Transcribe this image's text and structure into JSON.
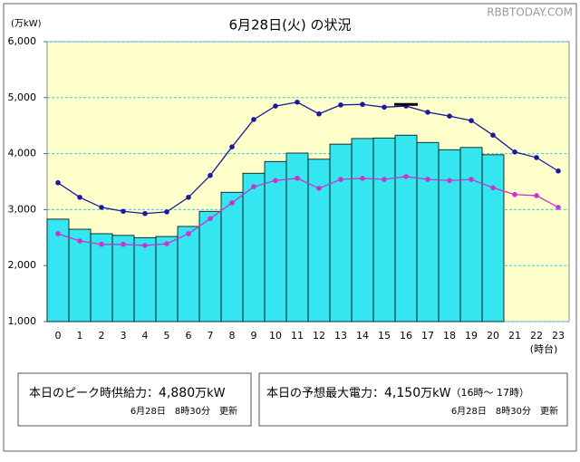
{
  "chart_data": {
    "type": "bar_line",
    "title": "6月28日(火) の状況",
    "watermark": "RBBTODAY.COM",
    "y_label": "(万kW)",
    "x_label": "(時台)",
    "categories": [
      "0",
      "1",
      "2",
      "3",
      "4",
      "5",
      "6",
      "7",
      "8",
      "9",
      "10",
      "11",
      "12",
      "13",
      "14",
      "15",
      "16",
      "17",
      "18",
      "19",
      "20",
      "21",
      "22",
      "23"
    ],
    "series": [
      {
        "kind": "bar",
        "color": "#33e6f0",
        "values": [
          2830,
          2650,
          2570,
          2540,
          2500,
          2520,
          2700,
          2970,
          3310,
          3650,
          3860,
          4010,
          3900,
          4170,
          4270,
          4280,
          4330,
          4200,
          4070,
          4110,
          3980,
          null,
          null,
          null
        ]
      },
      {
        "kind": "line",
        "color": "#1a1aa0",
        "values": [
          3480,
          3220,
          3040,
          2970,
          2930,
          2960,
          3220,
          3610,
          4120,
          4610,
          4850,
          4920,
          4710,
          4870,
          4880,
          4830,
          4850,
          4740,
          4670,
          4590,
          4330,
          4030,
          3930,
          3690
        ]
      },
      {
        "kind": "line",
        "color": "#cc33cc",
        "values": [
          2570,
          2440,
          2380,
          2380,
          2360,
          2390,
          2570,
          2840,
          3120,
          3410,
          3520,
          3560,
          3380,
          3540,
          3560,
          3540,
          3590,
          3540,
          3520,
          3540,
          3390,
          3270,
          3250,
          3040
        ]
      }
    ],
    "peak_marker": {
      "x": 16,
      "value": 4880
    },
    "ylim": [
      1000,
      6000
    ],
    "yticks": [
      {
        "value": 1000,
        "label": "1,000"
      },
      {
        "value": 2000,
        "label": "2,000"
      },
      {
        "value": 3000,
        "label": "3,000"
      },
      {
        "value": 4000,
        "label": "4,000"
      },
      {
        "value": 5000,
        "label": "5,000"
      },
      {
        "value": 6000,
        "label": "6,000"
      }
    ],
    "grid": true
  },
  "panels": [
    {
      "label": "本日のピーク時供給力：",
      "value": "4,880",
      "unit": "万kW",
      "note": "",
      "updated": "6月28日　8時30分　更新"
    },
    {
      "label": "本日の予想最大電力：",
      "value": "4,150",
      "unit": "万kW",
      "note": "（16時～ 17時）",
      "updated": "6月28日　8時30分　更新"
    }
  ]
}
